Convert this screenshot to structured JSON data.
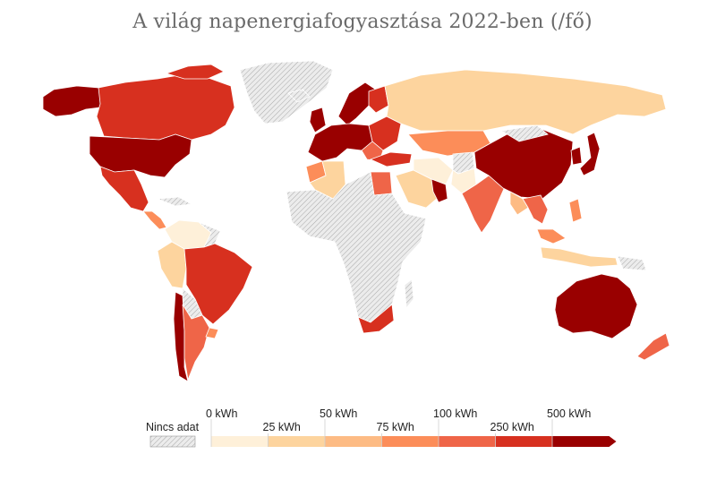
{
  "title": "A világ napenergiafogyasztása 2022-ben (/fő)",
  "legend": {
    "no_data_label": "Nincs adat",
    "bins": [
      {
        "label": "0 kWh",
        "color": "#fef0d9"
      },
      {
        "label": "25 kWh",
        "color": "#fdd49e"
      },
      {
        "label": "50 kWh",
        "color": "#fdbb84"
      },
      {
        "label": "75 kWh",
        "color": "#fc8d59"
      },
      {
        "label": "100 kWh",
        "color": "#ef6548"
      },
      {
        "label": "250 kWh",
        "color": "#d7301f"
      },
      {
        "label": "500 kWh",
        "color": "#990000"
      }
    ],
    "last_bin_color": "#990000",
    "no_data_pattern": "hatched-grey"
  },
  "colors": {
    "border": "#ffffff",
    "no_data_fill": "#e6e6e6",
    "no_data_hatch": "#b0b0b0",
    "title": "#6a6a6a"
  }
}
